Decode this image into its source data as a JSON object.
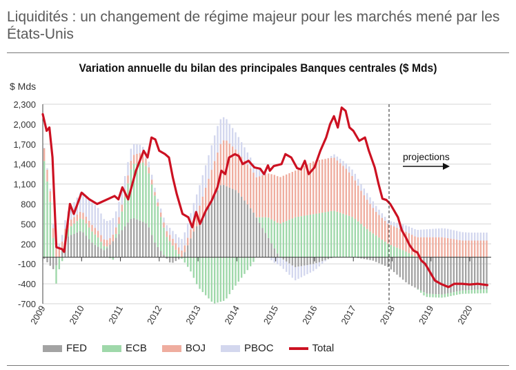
{
  "header": {
    "title": "Liquidités : un changement de régime majeur pour les marchés mené par les États-Unis"
  },
  "chart_data": {
    "type": "bar",
    "title": "Variation annuelle du bilan des principales Banques centrales ($ Mds)",
    "ylabel": "$ Mds",
    "ylim": [
      -700,
      2300
    ],
    "yticks": [
      "2,300",
      "2,000",
      "1,700",
      "1,400",
      "1,100",
      "800",
      "500",
      "200",
      "-100",
      "-400",
      "-700"
    ],
    "ytick_values": [
      2300,
      2000,
      1700,
      1400,
      1100,
      800,
      500,
      200,
      -100,
      -400,
      -700
    ],
    "xticks": [
      "2009",
      "2010",
      "2011",
      "2012",
      "2013",
      "2014",
      "2015",
      "2016",
      "2017",
      "2018",
      "2019",
      "2020"
    ],
    "xlim": [
      2009.0,
      2020.55
    ],
    "projection_start": 2017.92,
    "annotation": "projections",
    "stacked": true,
    "colors": {
      "FED": "#a3a3a3",
      "ECB": "#9fd8aa",
      "BOJ": "#efad9f",
      "PBOC": "#d3d7ee",
      "Total": "#cc1122"
    },
    "series_knots": {
      "FED": [
        [
          2009.0,
          0
        ],
        [
          2009.3,
          -200
        ],
        [
          2009.6,
          300
        ],
        [
          2010.0,
          400
        ],
        [
          2010.3,
          200
        ],
        [
          2010.6,
          100
        ],
        [
          2010.9,
          300
        ],
        [
          2011.3,
          600
        ],
        [
          2011.7,
          500
        ],
        [
          2011.9,
          200
        ],
        [
          2012.3,
          -100
        ],
        [
          2012.6,
          0
        ],
        [
          2012.9,
          400
        ],
        [
          2013.3,
          800
        ],
        [
          2013.6,
          1100
        ],
        [
          2014.0,
          1000
        ],
        [
          2014.4,
          700
        ],
        [
          2014.8,
          300
        ],
        [
          2015.1,
          0
        ],
        [
          2015.5,
          -150
        ],
        [
          2016.0,
          -100
        ],
        [
          2016.5,
          0
        ],
        [
          2017.0,
          0
        ],
        [
          2017.5,
          -50
        ],
        [
          2017.9,
          -150
        ],
        [
          2018.4,
          -400
        ],
        [
          2018.9,
          -550
        ],
        [
          2019.3,
          -560
        ],
        [
          2019.8,
          -500
        ],
        [
          2020.5,
          -480
        ]
      ],
      "ECB": [
        [
          2009.0,
          1600
        ],
        [
          2009.2,
          800
        ],
        [
          2009.35,
          -300
        ],
        [
          2009.6,
          100
        ],
        [
          2010.0,
          200
        ],
        [
          2010.4,
          150
        ],
        [
          2010.8,
          -50
        ],
        [
          2011.0,
          200
        ],
        [
          2011.3,
          800
        ],
        [
          2011.6,
          900
        ],
        [
          2011.9,
          700
        ],
        [
          2012.2,
          300
        ],
        [
          2012.5,
          50
        ],
        [
          2012.8,
          -200
        ],
        [
          2013.0,
          -450
        ],
        [
          2013.4,
          -700
        ],
        [
          2013.7,
          -650
        ],
        [
          2014.0,
          -400
        ],
        [
          2014.4,
          -100
        ],
        [
          2014.8,
          300
        ],
        [
          2015.1,
          500
        ],
        [
          2015.5,
          600
        ],
        [
          2016.0,
          650
        ],
        [
          2016.5,
          700
        ],
        [
          2017.0,
          600
        ],
        [
          2017.4,
          400
        ],
        [
          2017.9,
          200
        ],
        [
          2018.3,
          100
        ],
        [
          2018.8,
          -50
        ],
        [
          2019.2,
          -50
        ],
        [
          2019.7,
          -50
        ],
        [
          2020.5,
          -60
        ]
      ],
      "BOJ": [
        [
          2009.0,
          200
        ],
        [
          2009.5,
          100
        ],
        [
          2010.0,
          100
        ],
        [
          2010.5,
          100
        ],
        [
          2011.0,
          100
        ],
        [
          2011.5,
          150
        ],
        [
          2011.9,
          50
        ],
        [
          2012.3,
          100
        ],
        [
          2012.7,
          100
        ],
        [
          2013.0,
          200
        ],
        [
          2013.4,
          500
        ],
        [
          2013.7,
          700
        ],
        [
          2014.0,
          600
        ],
        [
          2014.5,
          600
        ],
        [
          2015.0,
          700
        ],
        [
          2015.5,
          700
        ],
        [
          2016.0,
          800
        ],
        [
          2016.5,
          800
        ],
        [
          2016.8,
          700
        ],
        [
          2017.2,
          500
        ],
        [
          2017.6,
          350
        ],
        [
          2017.9,
          300
        ],
        [
          2018.3,
          300
        ],
        [
          2018.8,
          300
        ],
        [
          2019.3,
          300
        ],
        [
          2019.8,
          250
        ],
        [
          2020.5,
          250
        ]
      ],
      "PBOC": [
        [
          2009.0,
          0
        ],
        [
          2009.5,
          100
        ],
        [
          2010.0,
          300
        ],
        [
          2010.4,
          350
        ],
        [
          2010.8,
          250
        ],
        [
          2011.2,
          200
        ],
        [
          2011.6,
          100
        ],
        [
          2012.0,
          50
        ],
        [
          2012.5,
          150
        ],
        [
          2013.0,
          300
        ],
        [
          2013.5,
          400
        ],
        [
          2013.8,
          300
        ],
        [
          2014.2,
          200
        ],
        [
          2014.6,
          100
        ],
        [
          2015.0,
          -100
        ],
        [
          2015.5,
          -200
        ],
        [
          2016.0,
          -100
        ],
        [
          2016.5,
          50
        ],
        [
          2017.0,
          100
        ],
        [
          2017.5,
          100
        ],
        [
          2017.9,
          50
        ],
        [
          2018.4,
          100
        ],
        [
          2018.9,
          120
        ],
        [
          2019.4,
          140
        ],
        [
          2020.0,
          120
        ],
        [
          2020.5,
          120
        ]
      ],
      "Total": [
        [
          2009.0,
          2150
        ],
        [
          2009.1,
          1900
        ],
        [
          2009.17,
          1950
        ],
        [
          2009.25,
          1500
        ],
        [
          2009.35,
          150
        ],
        [
          2009.5,
          120
        ],
        [
          2009.55,
          80
        ],
        [
          2009.7,
          800
        ],
        [
          2009.8,
          650
        ],
        [
          2010.0,
          970
        ],
        [
          2010.2,
          870
        ],
        [
          2010.4,
          800
        ],
        [
          2010.7,
          880
        ],
        [
          2010.85,
          920
        ],
        [
          2010.95,
          870
        ],
        [
          2011.05,
          1050
        ],
        [
          2011.2,
          870
        ],
        [
          2011.4,
          1300
        ],
        [
          2011.6,
          1600
        ],
        [
          2011.7,
          1500
        ],
        [
          2011.8,
          1800
        ],
        [
          2011.9,
          1770
        ],
        [
          2012.0,
          1600
        ],
        [
          2012.15,
          1550
        ],
        [
          2012.25,
          1500
        ],
        [
          2012.35,
          1200
        ],
        [
          2012.45,
          950
        ],
        [
          2012.6,
          650
        ],
        [
          2012.75,
          600
        ],
        [
          2012.85,
          450
        ],
        [
          2012.95,
          680
        ],
        [
          2013.05,
          500
        ],
        [
          2013.2,
          700
        ],
        [
          2013.35,
          850
        ],
        [
          2013.5,
          1050
        ],
        [
          2013.6,
          1300
        ],
        [
          2013.7,
          1250
        ],
        [
          2013.8,
          1500
        ],
        [
          2013.95,
          1550
        ],
        [
          2014.05,
          1520
        ],
        [
          2014.15,
          1400
        ],
        [
          2014.3,
          1450
        ],
        [
          2014.45,
          1350
        ],
        [
          2014.6,
          1330
        ],
        [
          2014.7,
          1250
        ],
        [
          2014.8,
          1380
        ],
        [
          2014.85,
          1300
        ],
        [
          2014.95,
          1370
        ],
        [
          2015.15,
          1400
        ],
        [
          2015.25,
          1550
        ],
        [
          2015.4,
          1500
        ],
        [
          2015.55,
          1340
        ],
        [
          2015.65,
          1320
        ],
        [
          2015.75,
          1450
        ],
        [
          2015.85,
          1250
        ],
        [
          2016.0,
          1350
        ],
        [
          2016.15,
          1600
        ],
        [
          2016.3,
          1800
        ],
        [
          2016.4,
          2000
        ],
        [
          2016.5,
          2120
        ],
        [
          2016.6,
          1950
        ],
        [
          2016.7,
          2250
        ],
        [
          2016.8,
          2200
        ],
        [
          2016.9,
          1950
        ],
        [
          2017.0,
          1900
        ],
        [
          2017.15,
          1750
        ],
        [
          2017.3,
          1800
        ],
        [
          2017.4,
          1600
        ],
        [
          2017.55,
          1350
        ],
        [
          2017.65,
          1100
        ],
        [
          2017.75,
          880
        ],
        [
          2017.85,
          860
        ],
        [
          2017.95,
          800
        ],
        [
          2018.05,
          700
        ],
        [
          2018.15,
          600
        ],
        [
          2018.25,
          400
        ],
        [
          2018.35,
          300
        ],
        [
          2018.45,
          180
        ],
        [
          2018.55,
          100
        ],
        [
          2018.65,
          70
        ],
        [
          2018.75,
          -50
        ],
        [
          2018.85,
          -100
        ],
        [
          2018.95,
          -200
        ],
        [
          2019.1,
          -350
        ],
        [
          2019.25,
          -400
        ],
        [
          2019.45,
          -450
        ],
        [
          2019.6,
          -400
        ],
        [
          2019.8,
          -400
        ],
        [
          2020.0,
          -410
        ],
        [
          2020.2,
          -400
        ],
        [
          2020.45,
          -420
        ]
      ]
    },
    "bar_step": 0.077,
    "legend": [
      {
        "name": "FED",
        "color": "#a3a3a3"
      },
      {
        "name": "ECB",
        "color": "#9fd8aa"
      },
      {
        "name": "BOJ",
        "color": "#efad9f"
      },
      {
        "name": "PBOC",
        "color": "#d3d7ee"
      },
      {
        "name": "Total",
        "color": "#cc1122"
      }
    ]
  }
}
